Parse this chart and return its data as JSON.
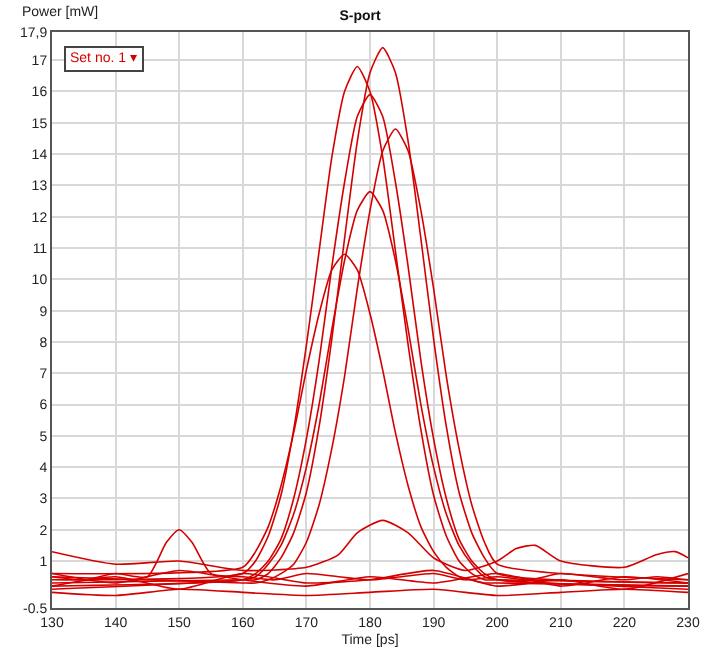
{
  "chart_data": {
    "type": "line",
    "title": "S-port",
    "xlabel": "Time [ps]",
    "ylabel": "Power [mW]",
    "annotations": [
      "Set no. 1 ▾"
    ],
    "xlim": [
      130,
      230
    ],
    "xticks": [
      130,
      140,
      150,
      160,
      170,
      180,
      190,
      200,
      210,
      220,
      230
    ],
    "ylim": [
      -0.5,
      17.9
    ],
    "yticks": [
      {
        "value": -0.5,
        "label": "-0.5"
      },
      1,
      2,
      3,
      4,
      5,
      6,
      7,
      8,
      9,
      10,
      11,
      12,
      13,
      14,
      15,
      16,
      17,
      {
        "value": 17.9,
        "label": "17,9"
      }
    ],
    "grid": true,
    "marker": "none",
    "line_style": "solid",
    "x": [
      130,
      160,
      162,
      164,
      166,
      168,
      170,
      172,
      174,
      176,
      178,
      180,
      182,
      184,
      186,
      188,
      190,
      192,
      194,
      196,
      198,
      200,
      230
    ],
    "series": [
      {
        "color": "#d40000",
        "values": [
          0.3,
          0.4,
          0.4,
          0.6,
          1.1,
          1.9,
          3.2,
          5.3,
          8.1,
          11.3,
          14.4,
          16.6,
          17.4,
          16.6,
          14.4,
          11.3,
          8.1,
          5.3,
          3.2,
          1.9,
          1.1,
          0.6,
          0.3
        ]
      },
      {
        "color": "#d40000",
        "values": [
          0.4,
          0.6,
          1.0,
          1.8,
          3.1,
          5.2,
          7.9,
          10.9,
          13.9,
          16.0,
          16.8,
          16.0,
          13.9,
          10.9,
          7.9,
          5.2,
          3.1,
          1.8,
          1.0,
          0.6,
          0.4,
          0.4,
          0.3
        ]
      },
      {
        "color": "#d40000",
        "values": [
          0.2,
          0.4,
          0.6,
          1.0,
          1.7,
          3.0,
          4.9,
          7.4,
          10.4,
          13.1,
          15.2,
          15.9,
          15.2,
          13.1,
          10.4,
          7.4,
          4.9,
          3.0,
          1.7,
          1.0,
          0.6,
          0.4,
          0.2
        ]
      },
      {
        "color": "#d40000",
        "values": [
          0.5,
          0.3,
          0.3,
          0.4,
          0.6,
          0.9,
          1.6,
          2.8,
          4.6,
          6.9,
          9.7,
          12.2,
          14.1,
          14.8,
          14.1,
          12.2,
          9.7,
          6.9,
          4.6,
          2.8,
          1.6,
          0.9,
          0.4
        ]
      },
      {
        "color": "#d40000",
        "values": [
          0.1,
          0.4,
          0.5,
          0.9,
          1.5,
          2.5,
          4.0,
          6.0,
          8.4,
          10.6,
          12.2,
          12.8,
          12.2,
          10.6,
          8.4,
          6.0,
          4.0,
          2.5,
          1.5,
          0.9,
          0.5,
          0.4,
          0.1
        ]
      },
      {
        "color": "#d40000",
        "values": [
          0.6,
          0.8,
          1.3,
          2.1,
          3.4,
          5.1,
          7.1,
          8.9,
          10.3,
          10.8,
          10.3,
          8.9,
          7.1,
          5.1,
          3.4,
          2.1,
          1.3,
          0.8,
          0.5,
          0.4,
          0.3,
          0.3,
          0.2
        ]
      },
      {
        "color": "#d40000",
        "x": [
          130,
          135,
          140,
          145,
          148,
          150,
          152,
          155,
          160,
          165,
          170,
          175,
          180,
          185,
          190,
          195,
          200,
          205,
          210,
          215,
          220,
          225,
          230
        ],
        "values": [
          0.5,
          0.4,
          0.6,
          0.5,
          1.6,
          2.0,
          1.6,
          0.6,
          0.5,
          0.4,
          0.6,
          0.5,
          0.4,
          0.5,
          0.6,
          0.4,
          0.5,
          0.4,
          0.6,
          0.5,
          0.4,
          0.5,
          0.4
        ]
      },
      {
        "color": "#d40000",
        "x": [
          130,
          140,
          150,
          160,
          170,
          175,
          178,
          182,
          186,
          190,
          195,
          200,
          203,
          206,
          210,
          220,
          225,
          228,
          230
        ],
        "values": [
          1.3,
          0.9,
          1.0,
          0.7,
          0.8,
          1.2,
          1.9,
          2.3,
          1.9,
          1.1,
          0.7,
          1.0,
          1.4,
          1.5,
          1.0,
          0.8,
          1.2,
          1.3,
          1.1
        ]
      },
      {
        "color": "#d40000",
        "x": [
          130,
          140,
          150,
          160,
          170,
          180,
          190,
          200,
          210,
          220,
          230
        ],
        "values": [
          0.0,
          -0.1,
          0.1,
          0.0,
          -0.1,
          0.0,
          0.1,
          -0.1,
          0.0,
          0.1,
          0.0
        ]
      },
      {
        "color": "#d40000",
        "x": [
          130,
          140,
          150,
          160,
          170,
          180,
          190,
          200,
          210,
          220,
          230
        ],
        "values": [
          0.6,
          0.3,
          0.7,
          0.4,
          0.2,
          0.5,
          0.3,
          0.6,
          0.2,
          0.5,
          0.3
        ]
      },
      {
        "color": "#d40000",
        "x": [
          130,
          140,
          150,
          160,
          170,
          180,
          190,
          200,
          210,
          220,
          230
        ],
        "values": [
          0.2,
          0.5,
          0.1,
          0.6,
          0.3,
          0.4,
          0.7,
          0.2,
          0.4,
          0.1,
          0.6
        ]
      }
    ]
  }
}
